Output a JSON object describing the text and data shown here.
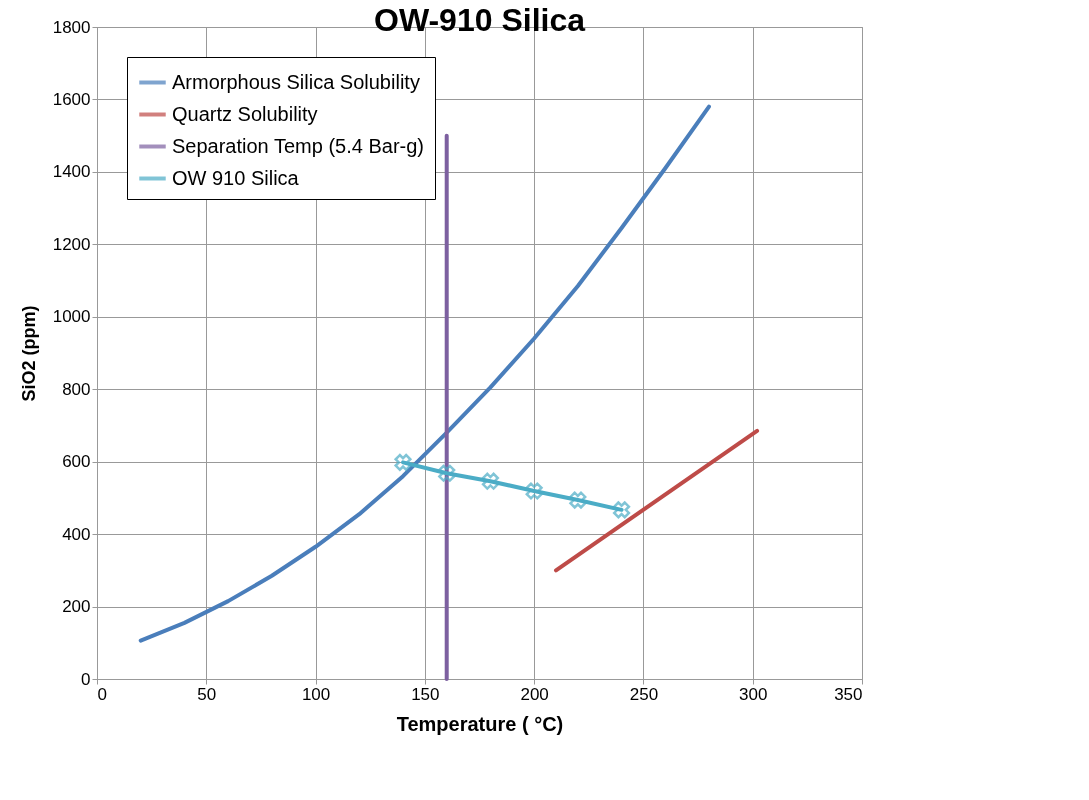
{
  "chart_data": {
    "type": "line",
    "title": "OW-910 Silica",
    "xlabel": "Temperature ( °C)",
    "ylabel": "SiO2 (ppm)",
    "xlim": [
      0,
      350
    ],
    "xticks": [
      0,
      50,
      100,
      150,
      200,
      250,
      300,
      350
    ],
    "ylim": [
      0,
      1800
    ],
    "yticks": [
      0,
      200,
      400,
      600,
      800,
      1000,
      1200,
      1400,
      1600,
      1800
    ],
    "grid": true,
    "legend": "top left",
    "series": [
      {
        "name": "Armorphous Silica Solubility",
        "color": "#4a7ebb",
        "marker": "none",
        "x": [
          20,
          40,
          60,
          80,
          100,
          120,
          140,
          160,
          180,
          200,
          220,
          240,
          260,
          280
        ],
        "values": [
          106,
          155,
          215,
          285,
          365,
          455,
          560,
          680,
          805,
          940,
          1085,
          1245,
          1410,
          1580
        ]
      },
      {
        "name": "Quartz Solubility",
        "color": "#be4b48",
        "marker": "none",
        "x": [
          210,
          302
        ],
        "values": [
          300,
          685
        ]
      },
      {
        "name": "Separation Temp (5.4 Bar-g)",
        "color": "#7d60a0",
        "marker": "none",
        "x": [
          160,
          160
        ],
        "values": [
          0,
          1500
        ]
      },
      {
        "name": "OW 910 Silica",
        "color": "#4bacc6",
        "marker": "cross",
        "x": [
          140,
          160,
          180,
          200,
          220,
          240
        ],
        "values": [
          598,
          568,
          546,
          519,
          494,
          467
        ]
      }
    ]
  }
}
